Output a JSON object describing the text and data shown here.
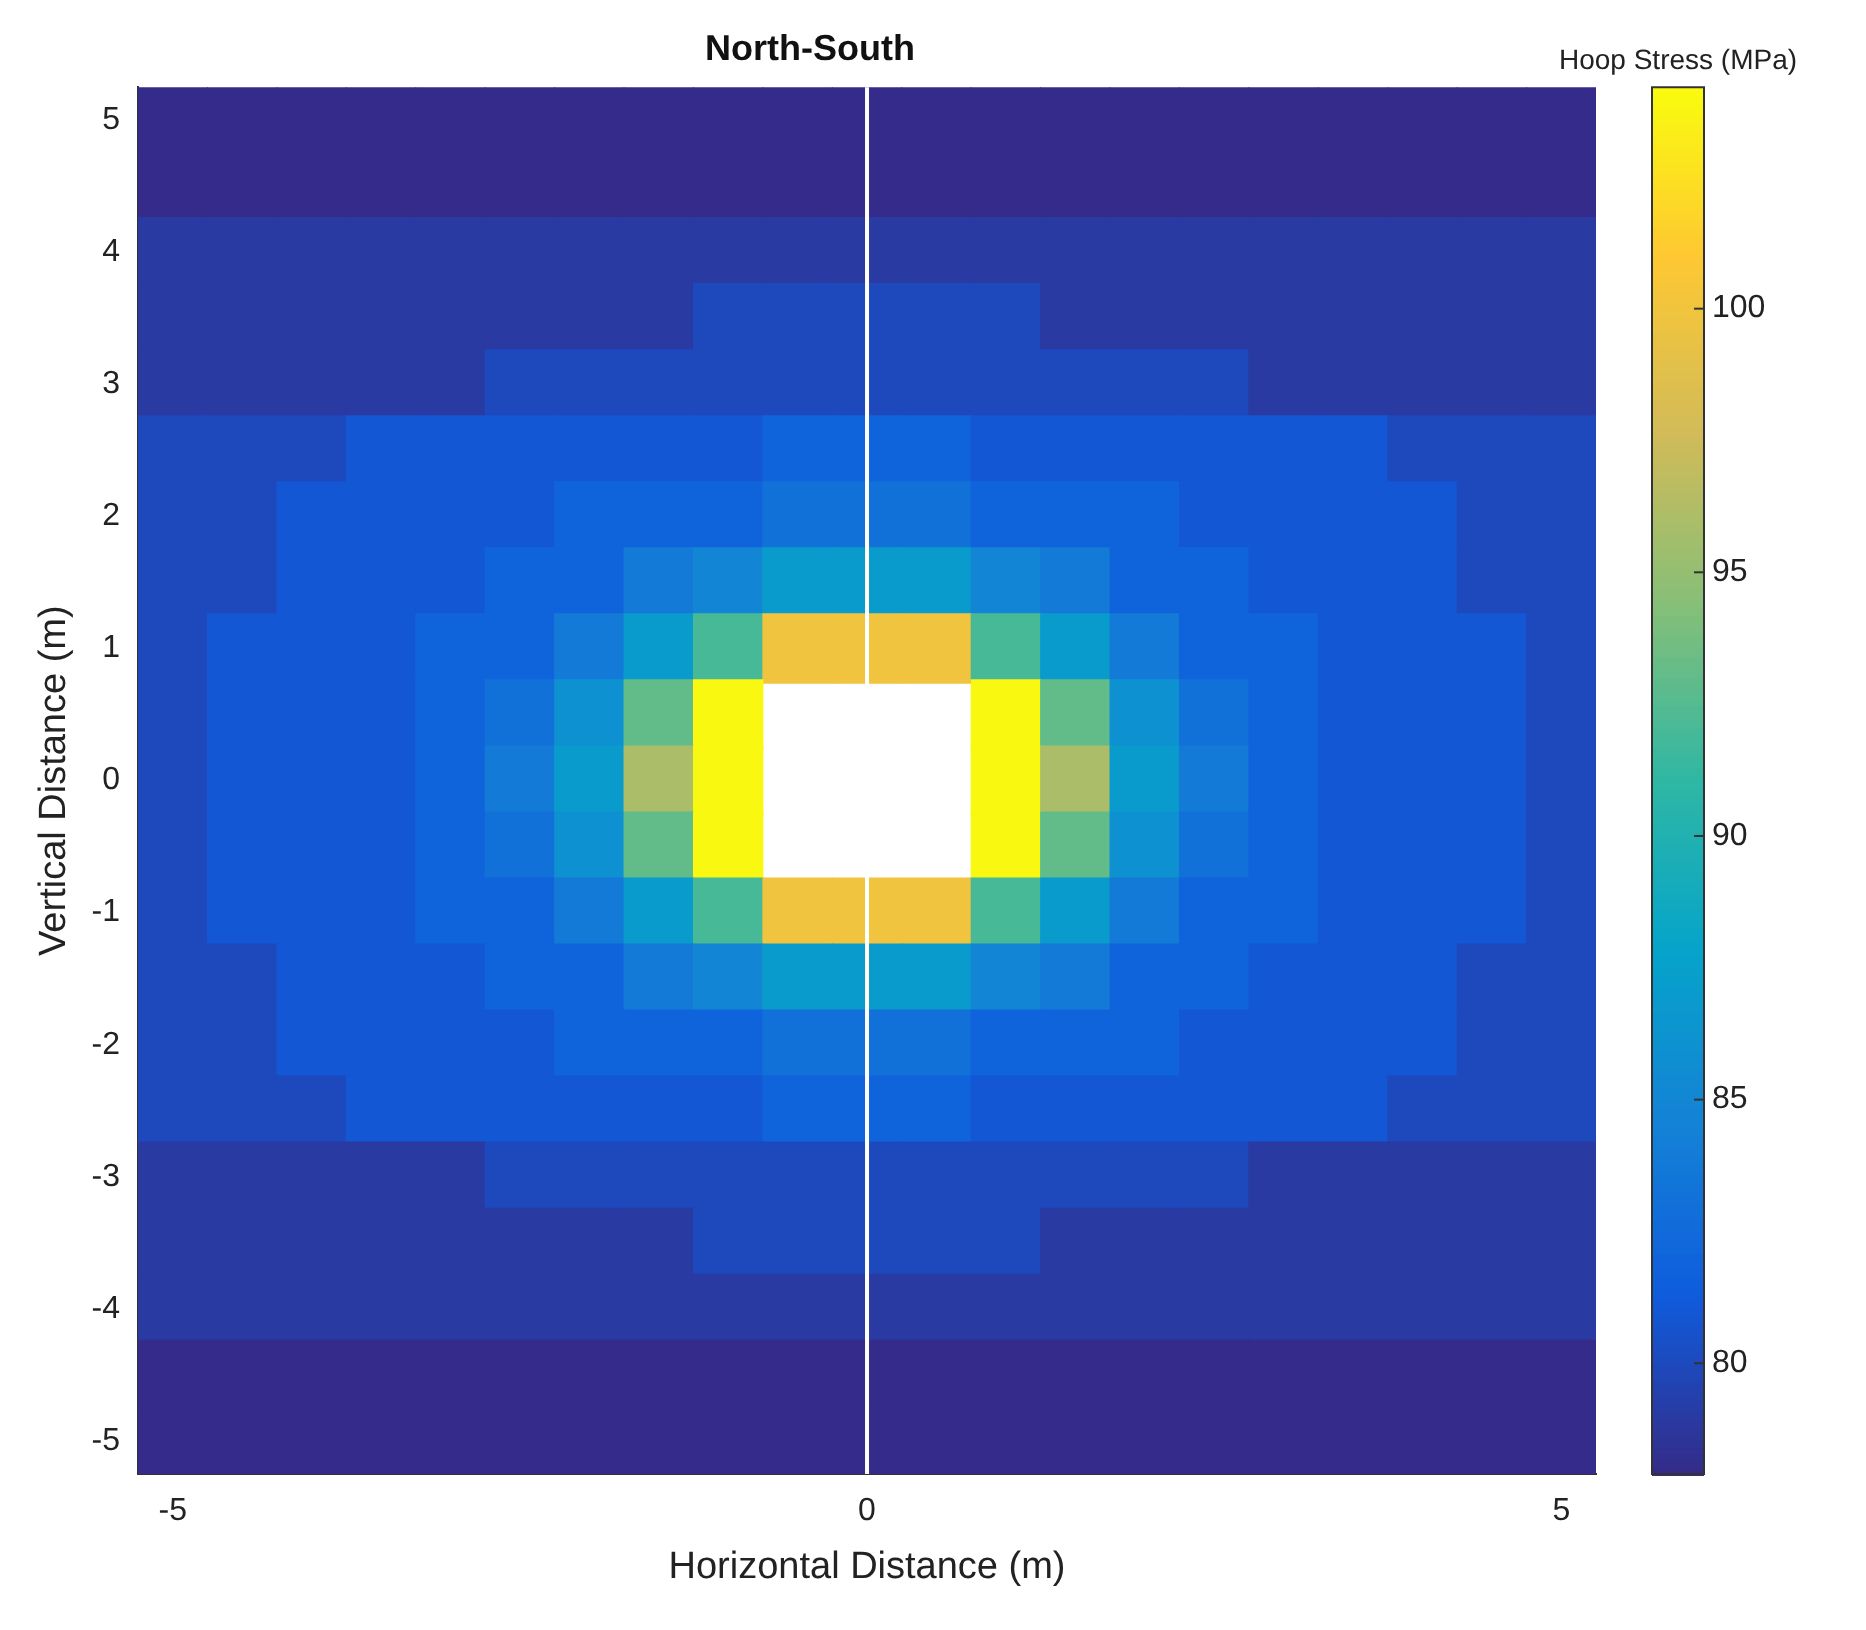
{
  "chart_data": {
    "type": "heatmap",
    "title": "North-South",
    "xlabel": "Horizontal Distance (m)",
    "ylabel": "Vertical Distance (m)",
    "clabel": "Hoop Stress (MPa)",
    "categories": [
      "-5",
      null,
      null,
      null,
      null,
      null,
      null,
      null,
      null,
      null,
      "0",
      null,
      null,
      null,
      null,
      null,
      null,
      null,
      null,
      null,
      "5"
    ],
    "y_categories": [
      "5",
      null,
      "4",
      null,
      "3",
      null,
      "2",
      null,
      "1",
      null,
      "0",
      null,
      "-1",
      null,
      "-2",
      null,
      "-3",
      null,
      "-4",
      null,
      "-5"
    ],
    "clim": [
      77.9,
      104.2
    ],
    "cticks": [
      80,
      85,
      90,
      95,
      100
    ],
    "ref_lines": [
      {
        "axis": "x",
        "value": "0",
        "color": "#ffffff"
      }
    ],
    "cells": [
      [
        78,
        78,
        78,
        78,
        78,
        78,
        78,
        78,
        78,
        78,
        78,
        78,
        78,
        78,
        78,
        78,
        78,
        78,
        78,
        78,
        78
      ],
      [
        78,
        78,
        78,
        78,
        78,
        78,
        78,
        78,
        78,
        78,
        78,
        78,
        78,
        78,
        78,
        78,
        78,
        78,
        78,
        78,
        78
      ],
      [
        79,
        79,
        79,
        79,
        79,
        79,
        79,
        79,
        79,
        79,
        79,
        79,
        79,
        79,
        79,
        79,
        79,
        79,
        79,
        79,
        79
      ],
      [
        79,
        79,
        79,
        79,
        79,
        79,
        79,
        79,
        80,
        80,
        80,
        80,
        80,
        79,
        79,
        79,
        79,
        79,
        79,
        79,
        79
      ],
      [
        79,
        79,
        79,
        79,
        79,
        80,
        80,
        80,
        80,
        80,
        80,
        80,
        80,
        80,
        80,
        80,
        79,
        79,
        79,
        79,
        79
      ],
      [
        80,
        80,
        80,
        81,
        81,
        81,
        81,
        81,
        81,
        82,
        82,
        82,
        81,
        81,
        81,
        81,
        81,
        81,
        80,
        80,
        80
      ],
      [
        80,
        80,
        81,
        81,
        81,
        81,
        82,
        82,
        82,
        83,
        83,
        83,
        82,
        82,
        82,
        81,
        81,
        81,
        81,
        80,
        80
      ],
      [
        80,
        80,
        81,
        81,
        81,
        82,
        82,
        84,
        85,
        87,
        87,
        87,
        85,
        84,
        82,
        82,
        81,
        81,
        81,
        80,
        80
      ],
      [
        80,
        81,
        81,
        81,
        82,
        82,
        84,
        87,
        92,
        100,
        100,
        100,
        92,
        87,
        84,
        82,
        82,
        81,
        81,
        81,
        80
      ],
      [
        80,
        81,
        81,
        81,
        82,
        83,
        86,
        93,
        104,
        null,
        null,
        null,
        104,
        93,
        86,
        83,
        82,
        81,
        81,
        81,
        80
      ],
      [
        80,
        81,
        81,
        81,
        82,
        84,
        87,
        96,
        104,
        null,
        null,
        null,
        104,
        96,
        87,
        84,
        82,
        81,
        81,
        81,
        80
      ],
      [
        80,
        81,
        81,
        81,
        82,
        83,
        86,
        93,
        104,
        null,
        null,
        null,
        104,
        93,
        86,
        83,
        82,
        81,
        81,
        81,
        80
      ],
      [
        80,
        81,
        81,
        81,
        82,
        82,
        84,
        87,
        92,
        100,
        100,
        100,
        92,
        87,
        84,
        82,
        82,
        81,
        81,
        81,
        80
      ],
      [
        80,
        80,
        81,
        81,
        81,
        82,
        82,
        84,
        85,
        87,
        87,
        87,
        85,
        84,
        82,
        82,
        81,
        81,
        81,
        80,
        80
      ],
      [
        80,
        80,
        81,
        81,
        81,
        81,
        82,
        82,
        82,
        83,
        83,
        83,
        82,
        82,
        82,
        81,
        81,
        81,
        81,
        80,
        80
      ],
      [
        80,
        80,
        80,
        81,
        81,
        81,
        81,
        81,
        81,
        82,
        82,
        82,
        81,
        81,
        81,
        81,
        81,
        81,
        80,
        80,
        80
      ],
      [
        79,
        79,
        79,
        79,
        79,
        80,
        80,
        80,
        80,
        80,
        80,
        80,
        80,
        80,
        80,
        80,
        79,
        79,
        79,
        79,
        79
      ],
      [
        79,
        79,
        79,
        79,
        79,
        79,
        79,
        79,
        80,
        80,
        80,
        80,
        80,
        79,
        79,
        79,
        79,
        79,
        79,
        79,
        79
      ],
      [
        79,
        79,
        79,
        79,
        79,
        79,
        79,
        79,
        79,
        79,
        79,
        79,
        79,
        79,
        79,
        79,
        79,
        79,
        79,
        79,
        79
      ],
      [
        78,
        78,
        78,
        78,
        78,
        78,
        78,
        78,
        78,
        78,
        78,
        78,
        78,
        78,
        78,
        78,
        78,
        78,
        78,
        78,
        78
      ],
      [
        78,
        78,
        78,
        78,
        78,
        78,
        78,
        78,
        78,
        78,
        78,
        78,
        78,
        78,
        78,
        78,
        78,
        78,
        78,
        78,
        78
      ]
    ]
  }
}
